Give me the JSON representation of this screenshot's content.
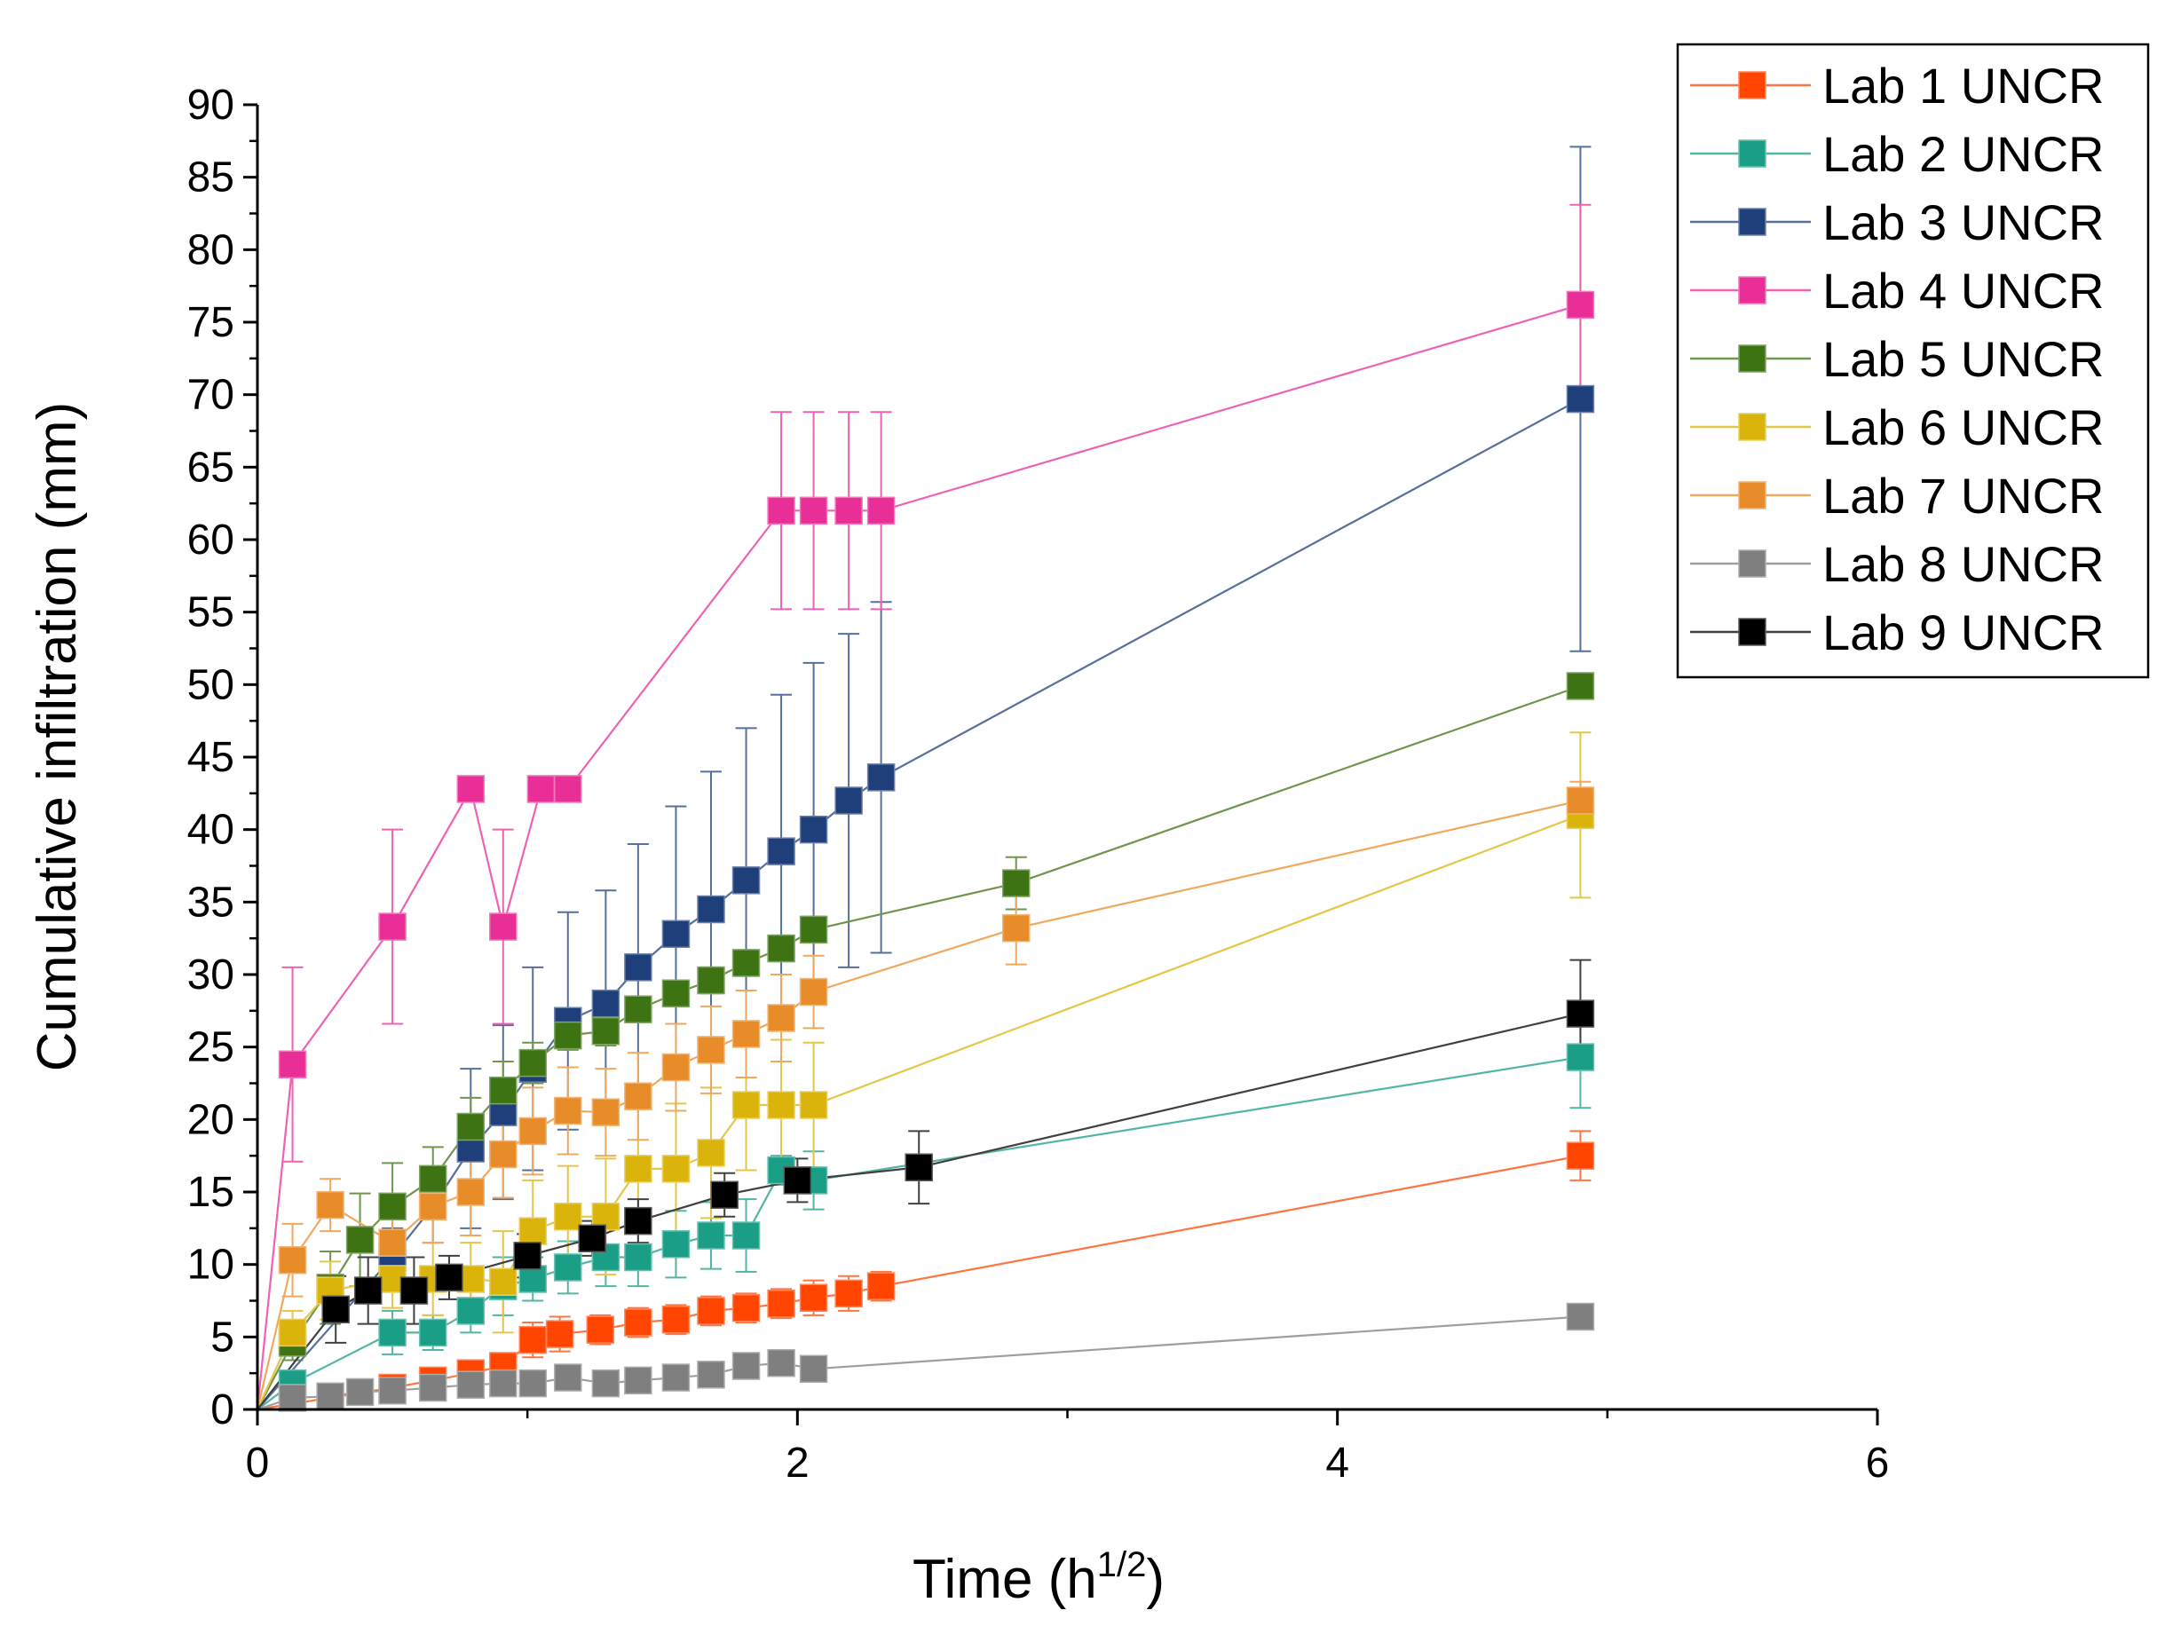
{
  "chart_data": {
    "type": "line",
    "title": "",
    "xlabel": "Time (h",
    "xlabel_superscript": "1/2",
    "xlabel_suffix": ")",
    "ylabel": "Cumulative infiltration (mm)",
    "xlim": [
      0,
      6
    ],
    "ylim": [
      0,
      90
    ],
    "x_ticks": [
      0,
      2,
      4,
      6
    ],
    "x_tick_labels": [
      "0",
      "2",
      "4",
      "6"
    ],
    "y_ticks": [
      0,
      5,
      10,
      15,
      20,
      25,
      30,
      35,
      40,
      45,
      50,
      55,
      60,
      65,
      70,
      75,
      80,
      85,
      90
    ],
    "y_tick_labels": [
      "0",
      "5",
      "10",
      "15",
      "20",
      "25",
      "30",
      "35",
      "40",
      "45",
      "50",
      "55",
      "60",
      "65",
      "70",
      "75",
      "80",
      "85",
      "90"
    ],
    "grid": false,
    "legend_position": "top-right-outside",
    "series": [
      {
        "name": "Lab 1 UNCR",
        "color": "#ff4500",
        "x": [
          0,
          0.5,
          0.65,
          0.79,
          0.91,
          1.02,
          1.12,
          1.27,
          1.41,
          1.55,
          1.68,
          1.81,
          1.94,
          2.06,
          2.19,
          2.31,
          4.9
        ],
        "y": [
          0,
          1.5,
          2.0,
          2.5,
          3.0,
          4.8,
          5.2,
          5.5,
          6.0,
          6.2,
          6.8,
          7.0,
          7.3,
          7.7,
          8.0,
          8.5,
          17.5
        ],
        "err": [
          0,
          0.8,
          0.8,
          0.8,
          0.8,
          1.2,
          1.2,
          1.0,
          1.0,
          1.0,
          1.0,
          1.0,
          1.0,
          1.2,
          1.2,
          1.0,
          1.7
        ]
      },
      {
        "name": "Lab 2 UNCR",
        "color": "#1a9e85",
        "x": [
          0,
          0.13,
          0.5,
          0.65,
          0.79,
          0.91,
          1.02,
          1.15,
          1.29,
          1.41,
          1.55,
          1.68,
          1.81,
          1.94,
          2.06,
          4.9
        ],
        "y": [
          0,
          1.8,
          5.3,
          5.3,
          6.8,
          8.5,
          9.0,
          9.8,
          10.5,
          10.5,
          11.4,
          12.0,
          12.0,
          16.5,
          15.8,
          24.3
        ],
        "err": [
          0,
          0.6,
          1.5,
          1.2,
          1.5,
          2.0,
          1.5,
          1.8,
          2.0,
          2.0,
          2.3,
          2.3,
          2.5,
          1.0,
          2.0,
          3.5
        ]
      },
      {
        "name": "Lab 3 UNCR",
        "color": "#1f3f7a",
        "x": [
          0,
          0.5,
          0.65,
          0.79,
          0.91,
          1.02,
          1.15,
          1.29,
          1.41,
          1.55,
          1.68,
          1.81,
          1.94,
          2.06,
          2.19,
          2.31,
          4.9
        ],
        "y": [
          0,
          10.5,
          14.0,
          18.0,
          20.5,
          23.5,
          26.8,
          28.0,
          30.5,
          32.8,
          34.5,
          36.5,
          38.5,
          40.0,
          42.0,
          43.6,
          69.7
        ],
        "err": [
          0,
          2.0,
          2.5,
          5.5,
          6.0,
          7.0,
          7.5,
          7.8,
          8.5,
          8.8,
          9.5,
          10.5,
          10.8,
          11.5,
          11.5,
          12.1,
          17.4
        ]
      },
      {
        "name": "Lab 4 UNCR",
        "color": "#ea2e97",
        "x": [
          0,
          0.13,
          0.5,
          0.79,
          0.91,
          1.05,
          1.15,
          1.94,
          2.06,
          2.19,
          2.31,
          4.9
        ],
        "y": [
          0,
          23.8,
          33.3,
          42.8,
          33.3,
          42.8,
          42.8,
          62.0,
          62.0,
          62.0,
          62.0,
          76.2
        ],
        "err": [
          0,
          6.7,
          6.7,
          0,
          6.7,
          0,
          0,
          6.8,
          6.8,
          6.8,
          6.8,
          6.9
        ]
      },
      {
        "name": "Lab 5 UNCR",
        "color": "#3d7313",
        "x": [
          0,
          0.13,
          0.27,
          0.38,
          0.5,
          0.65,
          0.79,
          0.91,
          1.02,
          1.15,
          1.29,
          1.41,
          1.55,
          1.68,
          1.81,
          1.94,
          2.06,
          2.81,
          4.9
        ],
        "y": [
          0,
          4.6,
          8.4,
          11.7,
          14.0,
          15.9,
          19.5,
          22.0,
          23.9,
          25.8,
          26.1,
          27.6,
          28.7,
          29.6,
          30.8,
          31.8,
          33.1,
          36.3,
          49.9
        ],
        "err": [
          0,
          1.2,
          2.5,
          3.2,
          3.0,
          2.2,
          2.0,
          2.0,
          1.4,
          1.0,
          1.0,
          0.9,
          0.9,
          0.9,
          0.9,
          0.9,
          0.9,
          1.8,
          0
        ]
      },
      {
        "name": "Lab 6 UNCR",
        "color": "#dbb40b",
        "x": [
          0,
          0.13,
          0.27,
          0.5,
          0.65,
          0.79,
          0.91,
          1.02,
          1.15,
          1.29,
          1.41,
          1.55,
          1.68,
          1.81,
          1.94,
          2.06,
          4.9
        ],
        "y": [
          0,
          5.3,
          8.2,
          9.0,
          9.0,
          9.0,
          8.8,
          12.3,
          13.3,
          13.3,
          16.6,
          16.6,
          17.7,
          21.0,
          21.0,
          21.0,
          41.0
        ],
        "err": [
          0,
          1.5,
          2.0,
          2.0,
          2.5,
          2.5,
          3.5,
          3.5,
          3.5,
          4.0,
          4.3,
          4.5,
          4.5,
          4.5,
          4.5,
          4.3,
          5.7
        ]
      },
      {
        "name": "Lab 7 UNCR",
        "color": "#e88c2a",
        "x": [
          0,
          0.13,
          0.27,
          0.5,
          0.65,
          0.79,
          0.91,
          1.02,
          1.15,
          1.29,
          1.41,
          1.55,
          1.68,
          1.81,
          1.94,
          2.06,
          2.81,
          4.9
        ],
        "y": [
          0,
          10.3,
          14.1,
          11.5,
          14.0,
          15.0,
          17.6,
          19.2,
          20.6,
          20.5,
          21.6,
          23.6,
          24.8,
          25.9,
          27.0,
          28.8,
          33.2,
          42.0
        ],
        "err": [
          0,
          2.5,
          1.8,
          2.8,
          2.5,
          3.0,
          3.0,
          3.0,
          3.0,
          3.0,
          3.0,
          3.0,
          3.0,
          3.0,
          3.0,
          2.5,
          2.5,
          1.3
        ]
      },
      {
        "name": "Lab 8 UNCR",
        "color": "#7f7f7f",
        "x": [
          0,
          0.13,
          0.27,
          0.38,
          0.5,
          0.65,
          0.79,
          0.91,
          1.02,
          1.15,
          1.29,
          1.41,
          1.55,
          1.68,
          1.81,
          1.94,
          2.06,
          4.9
        ],
        "y": [
          0,
          0.8,
          0.9,
          1.2,
          1.3,
          1.5,
          1.7,
          1.8,
          1.8,
          2.2,
          1.8,
          2.0,
          2.2,
          2.4,
          3.0,
          3.2,
          2.8,
          6.4
        ],
        "err": [
          0,
          0.3,
          0.3,
          0.3,
          0.3,
          0.3,
          0.3,
          0.3,
          0.3,
          0.3,
          0.3,
          0.3,
          0.3,
          0.3,
          0.3,
          0.3,
          0.3,
          0.3
        ]
      },
      {
        "name": "Lab 9 UNCR",
        "color": "#000000",
        "x": [
          0,
          0.29,
          0.41,
          0.58,
          0.71,
          1.0,
          1.24,
          1.41,
          1.73,
          2.0,
          2.45,
          4.9
        ],
        "y": [
          0,
          6.9,
          8.2,
          8.2,
          9.1,
          10.6,
          11.8,
          13.0,
          14.8,
          15.8,
          16.7,
          27.3
        ],
        "err": [
          0,
          2.3,
          2.3,
          2.3,
          1.5,
          1.5,
          1.2,
          1.5,
          1.5,
          1.5,
          2.5,
          3.7
        ]
      }
    ]
  }
}
